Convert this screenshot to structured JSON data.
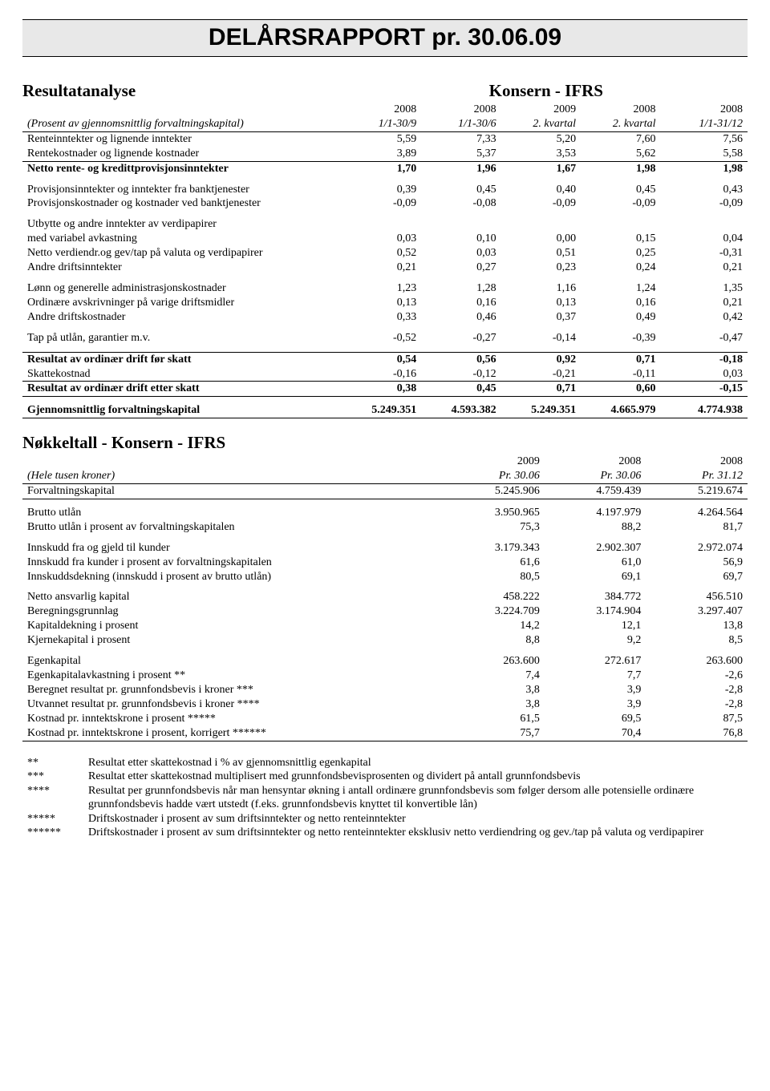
{
  "document_title": "DELÅRSRAPPORT  pr. 30.06.09",
  "section1": {
    "left_title": "Resultatanalyse",
    "right_title": "Konsern - IFRS",
    "row_subhead_label": "(Prosent av gjennomsnittlig forvaltningskapital)",
    "col_headers_top": [
      "2008",
      "2008",
      "2009",
      "2008",
      "2008"
    ],
    "col_headers_bottom": [
      "1/1-30/9",
      "1/1-30/6",
      "2. kvartal",
      "2. kvartal",
      "1/1-31/12"
    ],
    "rows": [
      {
        "label": "Renteinntekter og lignende inntekter",
        "v": [
          "5,59",
          "7,33",
          "5,20",
          "7,60",
          "7,56"
        ],
        "style": "plain"
      },
      {
        "label": "Rentekostnader og lignende kostnader",
        "v": [
          "3,89",
          "5,37",
          "3,53",
          "5,62",
          "5,58"
        ],
        "style": "plain border-bottom"
      },
      {
        "label": "Netto rente- og kredittprovisjonsinntekter",
        "v": [
          "1,70",
          "1,96",
          "1,67",
          "1,98",
          "1,98"
        ],
        "style": "bold"
      },
      {
        "style": "spacer"
      },
      {
        "label": "Provisjonsinntekter og inntekter fra banktjenester",
        "v": [
          "0,39",
          "0,45",
          "0,40",
          "0,45",
          "0,43"
        ],
        "style": "plain"
      },
      {
        "label": "Provisjonskostnader og kostnader ved banktjenester",
        "v": [
          "-0,09",
          "-0,08",
          "-0,09",
          "-0,09",
          "-0,09"
        ],
        "style": "plain"
      },
      {
        "style": "spacer"
      },
      {
        "label": "Utbytte og andre inntekter av verdipapirer",
        "v": [
          "",
          "",
          "",
          "",
          ""
        ],
        "style": "plain"
      },
      {
        "label": "med variabel avkastning",
        "v": [
          "0,03",
          "0,10",
          "0,00",
          "0,15",
          "0,04"
        ],
        "style": "plain"
      },
      {
        "label": "Netto verdiendr.og gev/tap på valuta og verdipapirer",
        "v": [
          "0,52",
          "0,03",
          "0,51",
          "0,25",
          "-0,31"
        ],
        "style": "plain"
      },
      {
        "label": "Andre driftsinntekter",
        "v": [
          "0,21",
          "0,27",
          "0,23",
          "0,24",
          "0,21"
        ],
        "style": "plain"
      },
      {
        "style": "spacer"
      },
      {
        "label": "Lønn og generelle administrasjonskostnader",
        "v": [
          "1,23",
          "1,28",
          "1,16",
          "1,24",
          "1,35"
        ],
        "style": "plain"
      },
      {
        "label": "Ordinære avskrivninger på varige driftsmidler",
        "v": [
          "0,13",
          "0,16",
          "0,13",
          "0,16",
          "0,21"
        ],
        "style": "plain"
      },
      {
        "label": "Andre driftskostnader",
        "v": [
          "0,33",
          "0,46",
          "0,37",
          "0,49",
          "0,42"
        ],
        "style": "plain"
      },
      {
        "style": "spacer"
      },
      {
        "label": "Tap på utlån, garantier m.v.",
        "v": [
          "-0,52",
          "-0,27",
          "-0,14",
          "-0,39",
          "-0,47"
        ],
        "style": "plain"
      },
      {
        "style": "spacer"
      },
      {
        "label": "Resultat av ordinær drift før skatt",
        "v": [
          "0,54",
          "0,56",
          "0,92",
          "0,71",
          "-0,18"
        ],
        "style": "bold border-top"
      },
      {
        "label": "Skattekostnad",
        "v": [
          "-0,16",
          "-0,12",
          "-0,21",
          "-0,11",
          "0,03"
        ],
        "style": "plain border-bottom"
      },
      {
        "label": "Resultat av ordinær drift etter skatt",
        "v": [
          "0,38",
          "0,45",
          "0,71",
          "0,60",
          "-0,15"
        ],
        "style": "bold border-bottom"
      },
      {
        "style": "spacer"
      },
      {
        "label": "Gjennomsnittlig forvaltningskapital",
        "v": [
          "5.249.351",
          "4.593.382",
          "5.249.351",
          "4.665.979",
          "4.774.938"
        ],
        "style": "bold border-bottom"
      }
    ]
  },
  "section2": {
    "title": "Nøkkeltall    -   Konsern - IFRS",
    "row_subhead_label": "(Hele tusen kroner)",
    "col_headers_top": [
      "2009",
      "2008",
      "2008"
    ],
    "col_headers_bottom": [
      "Pr. 30.06",
      "Pr. 30.06",
      "Pr. 31.12"
    ],
    "rows": [
      {
        "label": "Forvaltningskapital",
        "v": [
          "5.245.906",
          "4.759.439",
          "5.219.674"
        ],
        "style": "plain border-bottom"
      },
      {
        "style": "spacer"
      },
      {
        "label": "Brutto utlån",
        "v": [
          "3.950.965",
          "4.197.979",
          "4.264.564"
        ],
        "style": "plain"
      },
      {
        "label": "Brutto utlån i prosent av forvaltningskapitalen",
        "v": [
          "75,3",
          "88,2",
          "81,7"
        ],
        "style": "plain"
      },
      {
        "style": "spacer"
      },
      {
        "label": "Innskudd fra og gjeld til kunder",
        "v": [
          "3.179.343",
          "2.902.307",
          "2.972.074"
        ],
        "style": "plain"
      },
      {
        "label": "Innskudd fra kunder i prosent av forvaltningskapitalen",
        "v": [
          "61,6",
          "61,0",
          "56,9"
        ],
        "style": "plain"
      },
      {
        "label": "Innskuddsdekning (innskudd i prosent av brutto utlån)",
        "v": [
          "80,5",
          "69,1",
          "69,7"
        ],
        "style": "plain"
      },
      {
        "style": "spacer"
      },
      {
        "label": "Netto ansvarlig kapital",
        "v": [
          "458.222",
          "384.772",
          "456.510"
        ],
        "style": "plain"
      },
      {
        "label": "Beregningsgrunnlag",
        "v": [
          "3.224.709",
          "3.174.904",
          "3.297.407"
        ],
        "style": "plain"
      },
      {
        "label": "Kapitaldekning  i prosent",
        "v": [
          "14,2",
          "12,1",
          "13,8"
        ],
        "style": "plain"
      },
      {
        "label": "Kjernekapital  i prosent",
        "v": [
          "8,8",
          "9,2",
          "8,5"
        ],
        "style": "plain"
      },
      {
        "style": "spacer"
      },
      {
        "label": "Egenkapital",
        "v": [
          "263.600",
          "272.617",
          "263.600"
        ],
        "style": "plain"
      },
      {
        "label": "Egenkapitalavkastning i prosent **",
        "v": [
          "7,4",
          "7,7",
          "-2,6"
        ],
        "style": "plain"
      },
      {
        "label": "Beregnet resultat pr. grunnfondsbevis  i kroner ***",
        "v": [
          "3,8",
          "3,9",
          "-2,8"
        ],
        "style": "plain"
      },
      {
        "label": "Utvannet resultat pr. grunnfondsbevis i kroner ****",
        "v": [
          "3,8",
          "3,9",
          "-2,8"
        ],
        "style": "plain"
      },
      {
        "label": "Kostnad pr. inntektskrone i prosent   *****",
        "v": [
          "61,5",
          "69,5",
          "87,5"
        ],
        "style": "plain"
      },
      {
        "label": "Kostnad pr. inntektskrone i prosent, korrigert  ******",
        "v": [
          "75,7",
          "70,4",
          "76,8"
        ],
        "style": "plain border-bottom"
      }
    ]
  },
  "footnotes": [
    {
      "mark": "**",
      "text": "Resultat etter skattekostnad i % av gjennomsnittlig egenkapital"
    },
    {
      "mark": "***",
      "text": "Resultat etter skattekostnad multiplisert med grunnfondsbevisprosenten og dividert på antall grunnfondsbevis"
    },
    {
      "mark": "****",
      "text": "Resultat per grunnfondsbevis når man hensyntar økning i antall ordinære grunnfondsbevis som følger dersom alle potensielle ordinære grunnfondsbevis hadde vært utstedt (f.eks. grunnfondsbevis knyttet til konvertible lån)"
    },
    {
      "mark": "*****",
      "text": "Driftskostnader i prosent av sum driftsinntekter og netto renteinntekter"
    },
    {
      "mark": "******",
      "text": "Driftskostnader i prosent av sum driftsinntekter og netto renteinntekter eksklusiv netto verdiendring og gev./tap på valuta og verdipapirer"
    }
  ]
}
